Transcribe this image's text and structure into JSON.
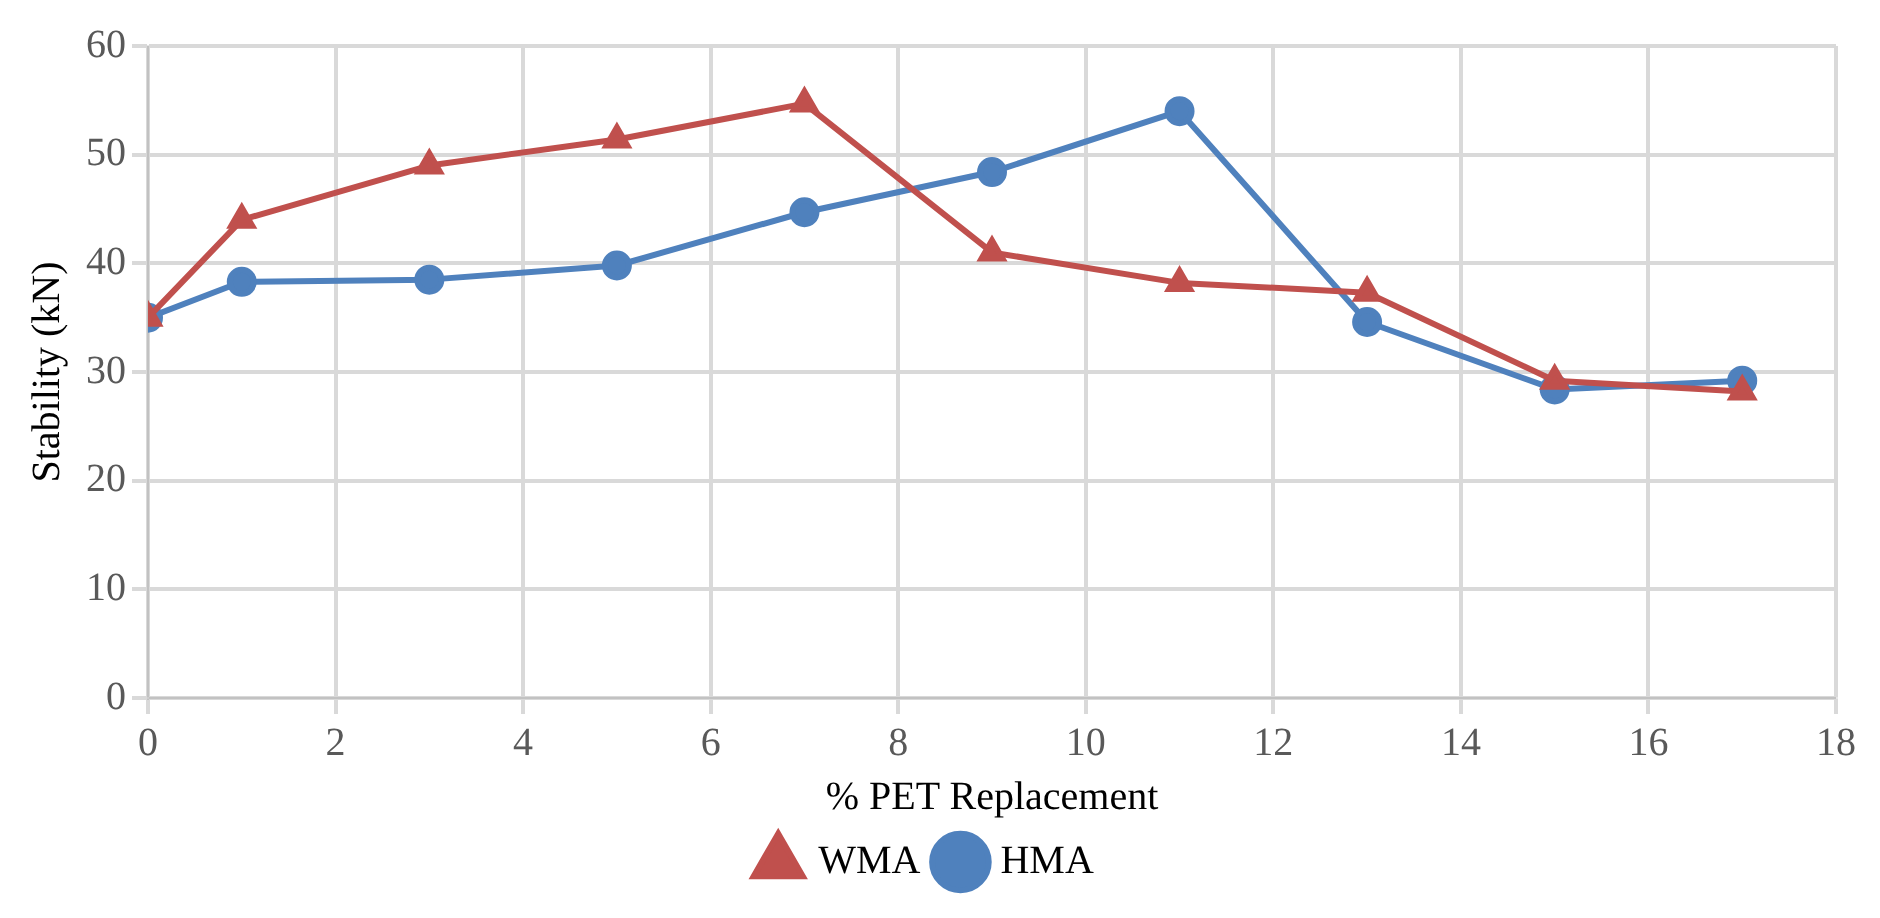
{
  "chart_data": {
    "type": "line",
    "xlabel": "% PET Replacement",
    "ylabel": "Stability (kN)",
    "x": [
      0,
      1,
      3,
      5,
      7,
      9,
      11,
      13,
      15,
      17
    ],
    "series": [
      {
        "name": "HMA",
        "color": "#4f81bd",
        "marker": "circle",
        "values": [
          35,
          38.3,
          38.5,
          39.8,
          44.7,
          48.4,
          54,
          34.6,
          28.4,
          29.2
        ]
      },
      {
        "name": "WMA",
        "color": "#c0504d",
        "marker": "triangle",
        "values": [
          35,
          44,
          49,
          51.4,
          54.7,
          41,
          38.2,
          37.3,
          29.2,
          28.2
        ]
      }
    ],
    "xlim": [
      0,
      18
    ],
    "xticks": [
      0,
      2,
      4,
      6,
      8,
      10,
      12,
      14,
      16,
      18
    ],
    "ylim": [
      0,
      60
    ],
    "yticks": [
      0,
      10,
      20,
      30,
      40,
      50,
      60
    ],
    "grid": true,
    "legend": "bottom",
    "line_style": "solid"
  }
}
